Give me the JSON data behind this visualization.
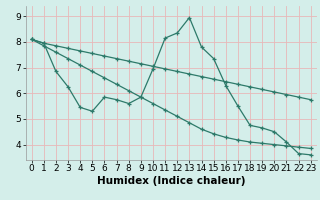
{
  "xlabel": "Humidex (Indice chaleur)",
  "bg_color": "#d4eeea",
  "grid_color": "#e8b8b8",
  "line_color": "#2d7a6a",
  "xlim": [
    -0.5,
    23.5
  ],
  "ylim": [
    3.4,
    9.4
  ],
  "yticks": [
    4,
    5,
    6,
    7,
    8,
    9
  ],
  "xticks": [
    0,
    1,
    2,
    3,
    4,
    5,
    6,
    7,
    8,
    9,
    10,
    11,
    12,
    13,
    14,
    15,
    16,
    17,
    18,
    19,
    20,
    21,
    22,
    23
  ],
  "line1_x": [
    0,
    1,
    2,
    3,
    4,
    5,
    6,
    7,
    8,
    9,
    10,
    11,
    12,
    13,
    14,
    15,
    16,
    17,
    18,
    19,
    20,
    21,
    22,
    23
  ],
  "line1_y": [
    8.1,
    7.95,
    7.85,
    7.75,
    7.65,
    7.55,
    7.45,
    7.35,
    7.25,
    7.15,
    7.05,
    6.95,
    6.85,
    6.75,
    6.65,
    6.55,
    6.45,
    6.35,
    6.25,
    6.15,
    6.05,
    5.95,
    5.85,
    5.75
  ],
  "line2_x": [
    0,
    1,
    2,
    3,
    4,
    5,
    6,
    7,
    8,
    9,
    10,
    11,
    12,
    13,
    14,
    15,
    16,
    17,
    18,
    19,
    20,
    21,
    22,
    23
  ],
  "line2_y": [
    8.1,
    7.95,
    6.85,
    6.25,
    5.45,
    5.3,
    5.85,
    5.75,
    5.6,
    5.85,
    6.95,
    8.15,
    8.35,
    8.95,
    7.8,
    7.35,
    6.3,
    5.5,
    4.75,
    4.65,
    4.5,
    4.1,
    3.65,
    3.6
  ],
  "line3_x": [
    0,
    1,
    2,
    3,
    4,
    5,
    6,
    7,
    8,
    9,
    10,
    11,
    12,
    13,
    14,
    15,
    16,
    17,
    18,
    19,
    20,
    21,
    22,
    23
  ],
  "line3_y": [
    8.1,
    7.85,
    7.6,
    7.35,
    7.1,
    6.85,
    6.6,
    6.35,
    6.1,
    5.85,
    5.6,
    5.35,
    5.1,
    4.85,
    4.6,
    4.42,
    4.28,
    4.18,
    4.1,
    4.05,
    4.0,
    3.95,
    3.9,
    3.85
  ],
  "tick_fontsize": 6.5,
  "xlabel_fontsize": 7.5
}
